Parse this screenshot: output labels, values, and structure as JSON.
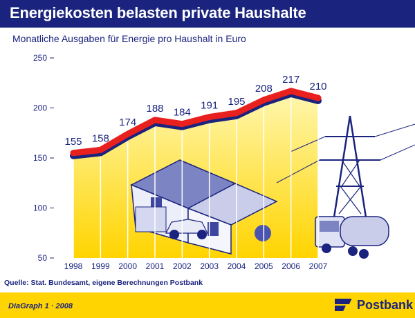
{
  "header": {
    "title": "Energiekosten belasten private Haushalte",
    "subtitle": "Monatliche Ausgaben für Energie pro Haushalt in Euro"
  },
  "footer": {
    "source": "Quelle: Stat. Bundesamt, eigene Berechnungen Postbank",
    "credit": "DiaGraph 1 · 2008",
    "brand": "Postbank"
  },
  "colors": {
    "navy": "#1a237e",
    "line": "#e8201e",
    "yellow": "#ffd400"
  },
  "chart_data": {
    "type": "line",
    "title": "Energiekosten belasten private Haushalte",
    "subtitle": "Monatliche Ausgaben für Energie pro Haushalt in Euro",
    "x": [
      "1998",
      "1999",
      "2000",
      "2001",
      "2002",
      "2003",
      "2004",
      "2005",
      "2006",
      "2007"
    ],
    "series": [
      {
        "values": [
          155,
          158,
          174,
          188,
          184,
          191,
          195,
          208,
          217,
          210
        ]
      }
    ],
    "ylim": [
      50,
      250
    ],
    "yticks": [
      50,
      100,
      150,
      200,
      250
    ],
    "grid": false,
    "legend": "none"
  }
}
